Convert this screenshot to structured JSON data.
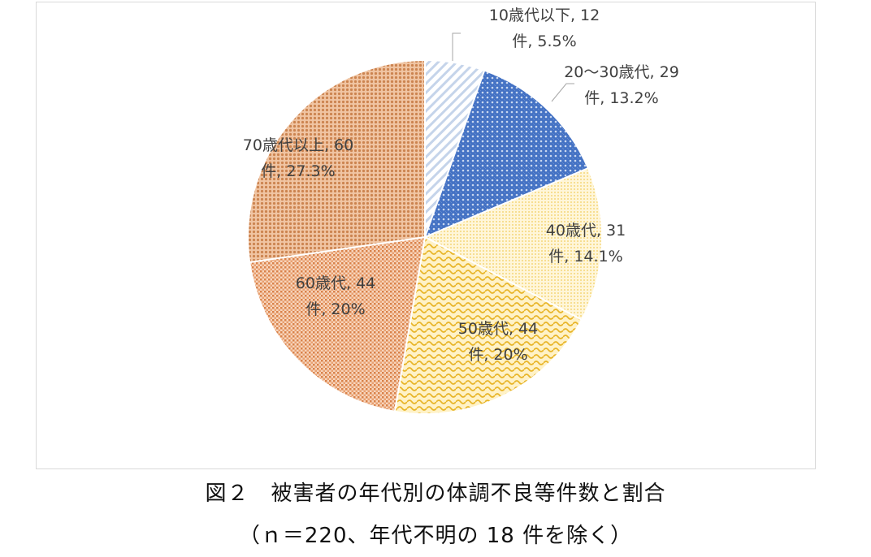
{
  "chart_data": {
    "type": "pie",
    "start_angle_deg": 0,
    "slices": [
      {
        "label_lines": [
          "10歳代以下, 12",
          "件, 5.5%"
        ],
        "category": "10歳代以下",
        "value": 12,
        "percent": "5.5%",
        "color": "#dae3f3",
        "pattern": "diag"
      },
      {
        "label_lines": [
          "20～30歳代, 29",
          "件, 13.2%"
        ],
        "category": "20～30歳代",
        "value": 29,
        "percent": "13.2%",
        "color": "#4472c4",
        "pattern": "lattice"
      },
      {
        "label_lines": [
          "40歳代, 31",
          "件, 14.1%"
        ],
        "category": "40歳代",
        "value": 31,
        "percent": "14.1%",
        "color": "#ffe699",
        "pattern": "dots"
      },
      {
        "label_lines": [
          "50歳代, 44",
          "件, 20%"
        ],
        "category": "50歳代",
        "value": 44,
        "percent": "20%",
        "color": "#f2c14e",
        "pattern": "wave"
      },
      {
        "label_lines": [
          "60歳代, 44",
          "件, 20%"
        ],
        "category": "60歳代",
        "value": 44,
        "percent": "20%",
        "color": "#e59a5e",
        "pattern": "dots2"
      },
      {
        "label_lines": [
          "70歳代以上, 60",
          "件, 27.3%"
        ],
        "category": "70歳代以上",
        "value": 60,
        "percent": "27.3%",
        "color": "#d9905a",
        "pattern": "dots3"
      }
    ]
  },
  "caption": {
    "line1": "図２　被害者の年代別の体調不良等件数と割合",
    "line2": "（ｎ＝220、年代不明の 18 件を除く）"
  }
}
